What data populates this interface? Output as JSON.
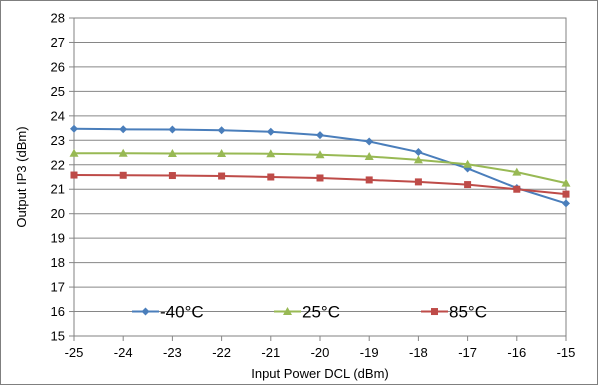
{
  "chart_data": {
    "type": "line",
    "title": "",
    "xlabel": "Input Power DCL (dBm)",
    "ylabel": "Output IP3 (dBm)",
    "x": [
      -25,
      -24,
      -23,
      -22,
      -21,
      -20,
      -19,
      -18,
      -17,
      -16,
      -15
    ],
    "xlim": [
      -25,
      -15
    ],
    "ylim": [
      15,
      28
    ],
    "x_ticks": [
      "-25",
      "-24",
      "-23",
      "-22",
      "-21",
      "-20",
      "-19",
      "-18",
      "-17",
      "-16",
      "-15"
    ],
    "y_ticks": [
      "15",
      "16",
      "17",
      "18",
      "19",
      "20",
      "21",
      "22",
      "23",
      "24",
      "25",
      "26",
      "27",
      "28"
    ],
    "grid": "horizontal",
    "legend_position": "bottom-inside",
    "series": [
      {
        "name": "-40°C",
        "color": "#4a7ebb",
        "marker": "diamond",
        "values": [
          23.47,
          23.45,
          23.44,
          23.41,
          23.35,
          23.21,
          22.95,
          22.52,
          21.85,
          21.05,
          20.42
        ]
      },
      {
        "name": "25°C",
        "color": "#98b954",
        "marker": "triangle",
        "values": [
          22.47,
          22.47,
          22.46,
          22.46,
          22.45,
          22.41,
          22.34,
          22.2,
          22.02,
          21.7,
          21.25
        ]
      },
      {
        "name": "85°C",
        "color": "#be4b48",
        "marker": "square",
        "values": [
          21.58,
          21.57,
          21.56,
          21.54,
          21.5,
          21.46,
          21.38,
          21.3,
          21.19,
          21.0,
          20.8
        ]
      }
    ]
  }
}
